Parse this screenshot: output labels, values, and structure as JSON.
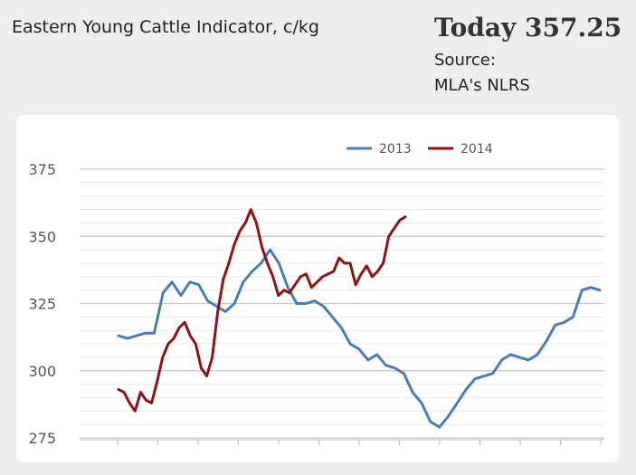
{
  "header": {
    "title": "Eastern Young Cattle Indicator, c/kg",
    "today": "Today 357.25",
    "source_line1": "Source:",
    "source_line2": "MLA's NLRS"
  },
  "chart_data": {
    "type": "line",
    "title": "Eastern Young Cattle Indicator, c/kg",
    "xlabel": "",
    "ylabel": "",
    "ylim": [
      275,
      375
    ],
    "yticks": [
      275,
      300,
      325,
      350,
      375
    ],
    "grid": true,
    "legend": "top",
    "x": "week of year",
    "series": [
      {
        "name": "2013",
        "color": "#4a7cb5",
        "points": [
          [
            1,
            313
          ],
          [
            2,
            312
          ],
          [
            3,
            313
          ],
          [
            4,
            314
          ],
          [
            5,
            314
          ],
          [
            6,
            329
          ],
          [
            7,
            333
          ],
          [
            8,
            328
          ],
          [
            9,
            333
          ],
          [
            10,
            332
          ],
          [
            11,
            326
          ],
          [
            12,
            324
          ],
          [
            13,
            322
          ],
          [
            14,
            325
          ],
          [
            15,
            333
          ],
          [
            16,
            337
          ],
          [
            17,
            340
          ],
          [
            18,
            345
          ],
          [
            19,
            340
          ],
          [
            20,
            331
          ],
          [
            21,
            325
          ],
          [
            22,
            325
          ],
          [
            23,
            326
          ],
          [
            24,
            324
          ],
          [
            25,
            320
          ],
          [
            26,
            316
          ],
          [
            27,
            310
          ],
          [
            28,
            308
          ],
          [
            29,
            304
          ],
          [
            30,
            306
          ],
          [
            31,
            302
          ],
          [
            32,
            301
          ],
          [
            33,
            299
          ],
          [
            34,
            292
          ],
          [
            35,
            288
          ],
          [
            36,
            281
          ],
          [
            37,
            279
          ],
          [
            38,
            283
          ],
          [
            39,
            288
          ],
          [
            40,
            293
          ],
          [
            41,
            297
          ],
          [
            42,
            298
          ],
          [
            43,
            299
          ],
          [
            44,
            304
          ],
          [
            45,
            306
          ],
          [
            46,
            305
          ],
          [
            47,
            304
          ],
          [
            48,
            306
          ],
          [
            49,
            311
          ],
          [
            50,
            317
          ],
          [
            51,
            318
          ],
          [
            52,
            320
          ],
          [
            53,
            330
          ],
          [
            54,
            331
          ],
          [
            55,
            330
          ]
        ]
      },
      {
        "name": "2014",
        "color": "#8b1414",
        "points": [
          [
            1,
            293
          ],
          [
            2,
            292
          ],
          [
            3,
            288
          ],
          [
            4,
            285
          ],
          [
            5,
            292
          ],
          [
            6,
            289
          ],
          [
            7,
            288
          ],
          [
            8,
            296
          ],
          [
            9,
            305
          ],
          [
            10,
            310
          ],
          [
            11,
            312
          ],
          [
            12,
            316
          ],
          [
            13,
            318
          ],
          [
            14,
            313
          ],
          [
            15,
            310
          ],
          [
            16,
            301
          ],
          [
            17,
            298
          ],
          [
            18,
            305
          ],
          [
            19,
            322
          ],
          [
            20,
            334
          ],
          [
            21,
            340
          ],
          [
            22,
            347
          ],
          [
            23,
            352
          ],
          [
            24,
            355
          ],
          [
            25,
            360
          ],
          [
            26,
            355
          ],
          [
            27,
            346
          ],
          [
            28,
            340
          ],
          [
            29,
            335
          ],
          [
            30,
            328
          ],
          [
            31,
            330
          ],
          [
            32,
            329
          ],
          [
            33,
            332
          ],
          [
            34,
            335
          ],
          [
            35,
            336
          ],
          [
            36,
            331
          ],
          [
            37,
            333
          ],
          [
            38,
            335
          ],
          [
            39,
            336
          ],
          [
            40,
            337
          ],
          [
            41,
            342
          ],
          [
            42,
            340
          ],
          [
            43,
            340
          ],
          [
            44,
            332
          ],
          [
            45,
            336
          ],
          [
            46,
            339
          ],
          [
            47,
            335
          ],
          [
            48,
            337
          ],
          [
            49,
            340
          ],
          [
            50,
            350
          ],
          [
            51,
            353
          ],
          [
            52,
            356
          ],
          [
            53,
            357.25
          ]
        ]
      }
    ]
  }
}
